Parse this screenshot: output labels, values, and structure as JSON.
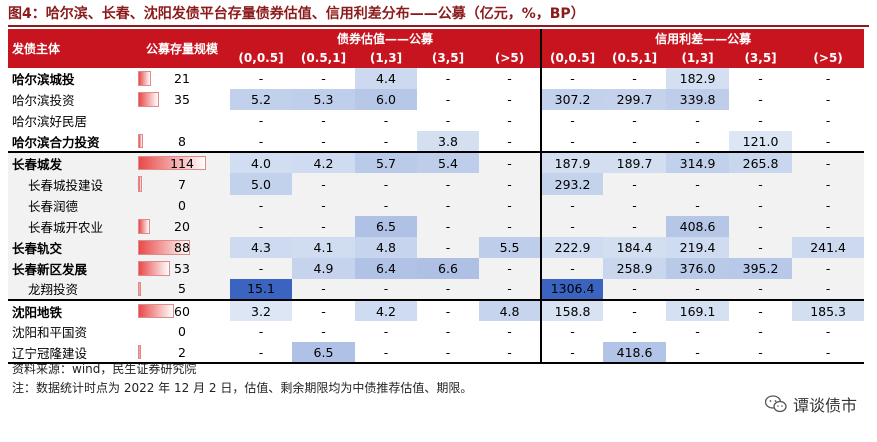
{
  "title": "图4：哈尔滨、长春、沈阳发债平台存量债券估值、信用利差分布——公募（亿元，%，BP）",
  "headers": {
    "issuer": "发债主体",
    "scale": "公募存量规模",
    "valuation_group": "债券估值——公募",
    "spread_group": "信用利差——公募",
    "terms": [
      "(0,0.5]",
      "(0.5,1]",
      "(1,3]",
      "(3,5]",
      "(>5)"
    ]
  },
  "rows": [
    {
      "name": "哈尔滨城投",
      "bold": true,
      "indent": false,
      "scale": "21",
      "val": [
        "-",
        "-",
        "4.4",
        "-",
        "-"
      ],
      "spread": [
        "-",
        "-",
        "182.9",
        "-",
        "-"
      ]
    },
    {
      "name": "哈尔滨投资",
      "bold": false,
      "indent": false,
      "scale": "35",
      "val": [
        "5.2",
        "5.3",
        "6.0",
        "-",
        "-"
      ],
      "spread": [
        "307.2",
        "299.7",
        "339.8",
        "-",
        "-"
      ]
    },
    {
      "name": "哈尔滨好民居",
      "bold": false,
      "indent": false,
      "scale": "",
      "val": [
        "-",
        "-",
        "-",
        "-",
        "-"
      ],
      "spread": [
        "-",
        "-",
        "-",
        "-",
        "-"
      ]
    },
    {
      "name": "哈尔滨合力投资",
      "bold": true,
      "indent": false,
      "scale": "8",
      "val": [
        "-",
        "-",
        "-",
        "3.8",
        "-"
      ],
      "spread": [
        "-",
        "-",
        "-",
        "121.0",
        "-"
      ]
    },
    {
      "name": "长春城发",
      "bold": true,
      "indent": false,
      "scale": "114",
      "val": [
        "4.0",
        "4.2",
        "5.7",
        "5.4",
        "-"
      ],
      "spread": [
        "187.9",
        "189.7",
        "314.9",
        "265.8",
        "-"
      ]
    },
    {
      "name": "长春城投建设",
      "bold": false,
      "indent": true,
      "scale": "7",
      "val": [
        "5.0",
        "-",
        "-",
        "-",
        "-"
      ],
      "spread": [
        "293.2",
        "-",
        "-",
        "-",
        "-"
      ]
    },
    {
      "name": "长春润德",
      "bold": false,
      "indent": true,
      "scale": "0",
      "val": [
        "-",
        "-",
        "-",
        "-",
        "-"
      ],
      "spread": [
        "-",
        "-",
        "-",
        "-",
        "-"
      ]
    },
    {
      "name": "长春城开农业",
      "bold": false,
      "indent": true,
      "scale": "20",
      "val": [
        "-",
        "-",
        "6.5",
        "-",
        "-"
      ],
      "spread": [
        "-",
        "-",
        "408.6",
        "-",
        "-"
      ]
    },
    {
      "name": "长春轨交",
      "bold": true,
      "indent": false,
      "scale": "88",
      "val": [
        "4.3",
        "4.1",
        "4.8",
        "-",
        "5.5"
      ],
      "spread": [
        "222.9",
        "184.4",
        "219.4",
        "-",
        "241.4"
      ]
    },
    {
      "name": "长春新区发展",
      "bold": true,
      "indent": false,
      "scale": "53",
      "val": [
        "-",
        "4.9",
        "6.4",
        "6.6",
        "-"
      ],
      "spread": [
        "-",
        "258.9",
        "376.0",
        "395.2",
        "-"
      ]
    },
    {
      "name": "龙翔投资",
      "bold": false,
      "indent": true,
      "scale": "5",
      "val": [
        "15.1",
        "-",
        "-",
        "-",
        "-"
      ],
      "spread": [
        "1306.4",
        "-",
        "-",
        "-",
        "-"
      ]
    },
    {
      "name": "沈阳地铁",
      "bold": true,
      "indent": false,
      "scale": "60",
      "val": [
        "3.2",
        "-",
        "4.2",
        "-",
        "4.8"
      ],
      "spread": [
        "158.8",
        "-",
        "169.1",
        "-",
        "185.3"
      ]
    },
    {
      "name": "沈阳和平国资",
      "bold": false,
      "indent": false,
      "scale": "0",
      "val": [
        "-",
        "-",
        "-",
        "-",
        "-"
      ],
      "spread": [
        "-",
        "-",
        "-",
        "-",
        "-"
      ]
    },
    {
      "name": "辽宁冠隆建设",
      "bold": false,
      "indent": false,
      "scale": "2",
      "val": [
        "-",
        "6.5",
        "-",
        "-",
        "-"
      ],
      "spread": [
        "-",
        "418.6",
        "-",
        "-",
        "-"
      ]
    }
  ],
  "notes": [
    "资料来源：wind，民生证券研究院",
    "注：数据统计时点为 2022 年 12 月 2 日，估值、剩余期限均为中债推荐估值、期限。"
  ],
  "watermark": "谭谈债市",
  "colors": {
    "header_bg": "#c8141e",
    "title": "#8b1a1a",
    "bar": "#e84a4a",
    "heat_low": "#dce6f4",
    "heat_high": "#3a64c0"
  }
}
